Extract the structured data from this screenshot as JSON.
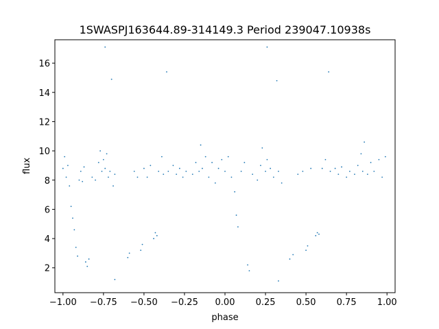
{
  "chart_data": {
    "type": "scatter",
    "title": "1SWASPJ163644.89-314149.3 Period 239047.10938s",
    "xlabel": "phase",
    "ylabel": "flux",
    "xlim": [
      -1.05,
      1.05
    ],
    "ylim": [
      0.3,
      17.6
    ],
    "x_ticks": [
      -1.0,
      -0.75,
      -0.5,
      -0.25,
      0.0,
      0.25,
      0.5,
      0.75,
      1.0
    ],
    "x_tick_labels": [
      "−1.00",
      "−0.75",
      "−0.50",
      "−0.25",
      "0.00",
      "0.25",
      "0.50",
      "0.75",
      "1.00"
    ],
    "y_ticks": [
      2,
      4,
      6,
      8,
      10,
      12,
      14,
      16
    ],
    "y_tick_labels": [
      "2",
      "4",
      "6",
      "8",
      "10",
      "12",
      "14",
      "16"
    ],
    "grid": false,
    "legend": "none",
    "point_color": "#1f77b4",
    "series": [
      {
        "points": [
          [
            -1.0,
            8.8
          ],
          [
            -0.99,
            9.6
          ],
          [
            -0.98,
            8.2
          ],
          [
            -0.97,
            9.0
          ],
          [
            -0.96,
            7.6
          ],
          [
            -0.95,
            6.2
          ],
          [
            -0.94,
            5.4
          ],
          [
            -0.93,
            4.6
          ],
          [
            -0.92,
            3.4
          ],
          [
            -0.91,
            2.8
          ],
          [
            -0.9,
            8.0
          ],
          [
            -0.89,
            8.6
          ],
          [
            -0.88,
            7.9
          ],
          [
            -0.87,
            8.9
          ],
          [
            -0.86,
            2.4
          ],
          [
            -0.85,
            2.1
          ],
          [
            -0.84,
            2.6
          ],
          [
            -0.82,
            8.2
          ],
          [
            -0.8,
            8.0
          ],
          [
            -0.78,
            9.2
          ],
          [
            -0.77,
            10.0
          ],
          [
            -0.76,
            8.6
          ],
          [
            -0.75,
            9.4
          ],
          [
            -0.74,
            8.8
          ],
          [
            -0.73,
            9.8
          ],
          [
            -0.72,
            8.2
          ],
          [
            -0.71,
            8.6
          ],
          [
            -0.7,
            14.9
          ],
          [
            -0.69,
            7.6
          ],
          [
            -0.68,
            8.4
          ],
          [
            -0.6,
            2.7
          ],
          [
            -0.59,
            3.0
          ],
          [
            -0.56,
            8.6
          ],
          [
            -0.54,
            8.2
          ],
          [
            -0.52,
            3.2
          ],
          [
            -0.51,
            3.6
          ],
          [
            -0.5,
            8.8
          ],
          [
            -0.48,
            8.2
          ],
          [
            -0.46,
            9.0
          ],
          [
            -0.44,
            4.0
          ],
          [
            -0.43,
            4.4
          ],
          [
            -0.42,
            4.2
          ],
          [
            -0.41,
            8.6
          ],
          [
            -0.39,
            9.6
          ],
          [
            -0.38,
            8.4
          ],
          [
            -0.36,
            15.4
          ],
          [
            -0.35,
            8.6
          ],
          [
            -0.32,
            9.0
          ],
          [
            -0.3,
            8.4
          ],
          [
            -0.28,
            8.8
          ],
          [
            -0.26,
            8.2
          ],
          [
            -0.24,
            8.6
          ],
          [
            -0.2,
            8.4
          ],
          [
            -0.18,
            9.2
          ],
          [
            -0.16,
            8.6
          ],
          [
            -0.15,
            10.4
          ],
          [
            -0.14,
            8.8
          ],
          [
            -0.12,
            9.6
          ],
          [
            -0.1,
            8.2
          ],
          [
            -0.08,
            9.2
          ],
          [
            -0.06,
            7.8
          ],
          [
            -0.04,
            8.8
          ],
          [
            -0.02,
            9.4
          ],
          [
            0.0,
            8.6
          ],
          [
            0.02,
            9.6
          ],
          [
            0.04,
            8.2
          ],
          [
            0.06,
            7.2
          ],
          [
            0.07,
            5.6
          ],
          [
            0.08,
            4.8
          ],
          [
            0.1,
            8.6
          ],
          [
            0.12,
            9.2
          ],
          [
            0.14,
            2.2
          ],
          [
            0.15,
            1.8
          ],
          [
            0.17,
            8.4
          ],
          [
            0.2,
            8.0
          ],
          [
            0.22,
            9.0
          ],
          [
            0.23,
            10.2
          ],
          [
            0.25,
            8.6
          ],
          [
            0.26,
            9.4
          ],
          [
            0.28,
            8.8
          ],
          [
            0.3,
            8.2
          ],
          [
            0.32,
            14.8
          ],
          [
            0.33,
            8.6
          ],
          [
            0.35,
            7.8
          ],
          [
            0.4,
            2.6
          ],
          [
            0.42,
            2.9
          ],
          [
            0.45,
            8.4
          ],
          [
            0.48,
            8.6
          ],
          [
            0.5,
            3.2
          ],
          [
            0.51,
            3.5
          ],
          [
            0.53,
            8.8
          ],
          [
            0.56,
            4.2
          ],
          [
            0.57,
            4.4
          ],
          [
            0.58,
            4.3
          ],
          [
            0.6,
            8.8
          ],
          [
            0.62,
            9.4
          ],
          [
            0.64,
            15.4
          ],
          [
            0.65,
            8.6
          ],
          [
            0.68,
            8.8
          ],
          [
            0.7,
            8.4
          ],
          [
            0.72,
            8.9
          ],
          [
            0.75,
            8.2
          ],
          [
            0.77,
            8.6
          ],
          [
            0.8,
            8.4
          ],
          [
            0.82,
            9.0
          ],
          [
            0.84,
            9.8
          ],
          [
            0.85,
            8.6
          ],
          [
            0.86,
            10.6
          ],
          [
            0.88,
            8.4
          ],
          [
            0.9,
            9.2
          ],
          [
            0.92,
            8.6
          ],
          [
            0.95,
            9.4
          ],
          [
            0.97,
            8.2
          ],
          [
            0.99,
            9.6
          ],
          [
            -0.74,
            17.1
          ],
          [
            0.26,
            17.1
          ],
          [
            -0.68,
            1.2
          ],
          [
            0.33,
            1.1
          ]
        ]
      }
    ]
  }
}
